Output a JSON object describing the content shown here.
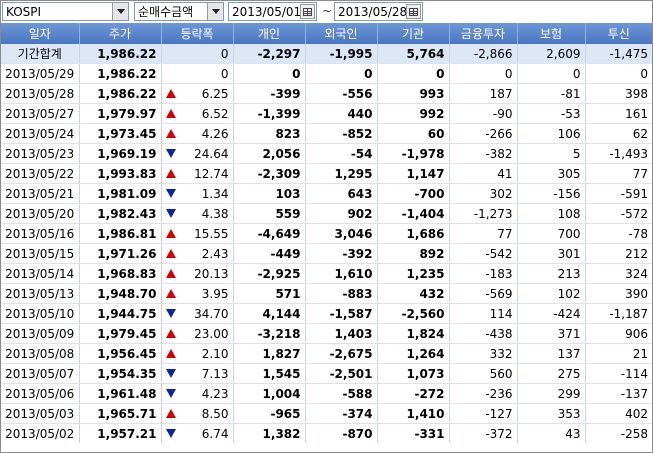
{
  "toolbar": {
    "market": "KOSPI",
    "metric": "순매수금액",
    "start_date": "2013/05/01",
    "separator": "~",
    "end_date": "2013/05/28"
  },
  "columns": [
    "일자",
    "주가",
    "등락폭",
    "개인",
    "외국인",
    "기관",
    "금융투자",
    "보험",
    "투신"
  ],
  "colors": {
    "up": "#d40000",
    "down": "#0a24a6",
    "header": "#4a76c0"
  },
  "rows": [
    {
      "date": "기간합계",
      "price": "1,986.22",
      "dir": "flat",
      "change": "0",
      "individual": "-2,297",
      "foreign": "-1,995",
      "institution": "5,764",
      "fin_invest": "-2,866",
      "insurance": "2,609",
      "trust": "-1,475",
      "total": true
    },
    {
      "date": "2013/05/29",
      "price": "1,986.22",
      "dir": "flat",
      "change": "0",
      "individual": "0",
      "foreign": "0",
      "institution": "0",
      "fin_invest": "0",
      "insurance": "0",
      "trust": "0"
    },
    {
      "date": "2013/05/28",
      "price": "1,986.22",
      "dir": "up",
      "change": "6.25",
      "individual": "-399",
      "foreign": "-556",
      "institution": "993",
      "fin_invest": "187",
      "insurance": "-81",
      "trust": "398"
    },
    {
      "date": "2013/05/27",
      "price": "1,979.97",
      "dir": "up",
      "change": "6.52",
      "individual": "-1,399",
      "foreign": "440",
      "institution": "992",
      "fin_invest": "-90",
      "insurance": "-53",
      "trust": "161"
    },
    {
      "date": "2013/05/24",
      "price": "1,973.45",
      "dir": "up",
      "change": "4.26",
      "individual": "823",
      "foreign": "-852",
      "institution": "60",
      "fin_invest": "-266",
      "insurance": "106",
      "trust": "62"
    },
    {
      "date": "2013/05/23",
      "price": "1,969.19",
      "dir": "down",
      "change": "24.64",
      "individual": "2,056",
      "foreign": "-54",
      "institution": "-1,978",
      "fin_invest": "-382",
      "insurance": "5",
      "trust": "-1,493"
    },
    {
      "date": "2013/05/22",
      "price": "1,993.83",
      "dir": "up",
      "change": "12.74",
      "individual": "-2,309",
      "foreign": "1,295",
      "institution": "1,147",
      "fin_invest": "41",
      "insurance": "305",
      "trust": "77"
    },
    {
      "date": "2013/05/21",
      "price": "1,981.09",
      "dir": "down",
      "change": "1.34",
      "individual": "103",
      "foreign": "643",
      "institution": "-700",
      "fin_invest": "302",
      "insurance": "-156",
      "trust": "-591"
    },
    {
      "date": "2013/05/20",
      "price": "1,982.43",
      "dir": "down",
      "change": "4.38",
      "individual": "559",
      "foreign": "902",
      "institution": "-1,404",
      "fin_invest": "-1,273",
      "insurance": "108",
      "trust": "-572"
    },
    {
      "date": "2013/05/16",
      "price": "1,986.81",
      "dir": "up",
      "change": "15.55",
      "individual": "-4,649",
      "foreign": "3,046",
      "institution": "1,686",
      "fin_invest": "77",
      "insurance": "700",
      "trust": "-78"
    },
    {
      "date": "2013/05/15",
      "price": "1,971.26",
      "dir": "up",
      "change": "2.43",
      "individual": "-449",
      "foreign": "-392",
      "institution": "892",
      "fin_invest": "-542",
      "insurance": "301",
      "trust": "212"
    },
    {
      "date": "2013/05/14",
      "price": "1,968.83",
      "dir": "up",
      "change": "20.13",
      "individual": "-2,925",
      "foreign": "1,610",
      "institution": "1,235",
      "fin_invest": "-183",
      "insurance": "213",
      "trust": "324"
    },
    {
      "date": "2013/05/13",
      "price": "1,948.70",
      "dir": "up",
      "change": "3.95",
      "individual": "571",
      "foreign": "-883",
      "institution": "432",
      "fin_invest": "-569",
      "insurance": "102",
      "trust": "390"
    },
    {
      "date": "2013/05/10",
      "price": "1,944.75",
      "dir": "down",
      "change": "34.70",
      "individual": "4,144",
      "foreign": "-1,587",
      "institution": "-2,560",
      "fin_invest": "114",
      "insurance": "-424",
      "trust": "-1,187"
    },
    {
      "date": "2013/05/09",
      "price": "1,979.45",
      "dir": "up",
      "change": "23.00",
      "individual": "-3,218",
      "foreign": "1,403",
      "institution": "1,824",
      "fin_invest": "-438",
      "insurance": "371",
      "trust": "906"
    },
    {
      "date": "2013/05/08",
      "price": "1,956.45",
      "dir": "up",
      "change": "2.10",
      "individual": "1,827",
      "foreign": "-2,675",
      "institution": "1,264",
      "fin_invest": "332",
      "insurance": "137",
      "trust": "21"
    },
    {
      "date": "2013/05/07",
      "price": "1,954.35",
      "dir": "down",
      "change": "7.13",
      "individual": "1,545",
      "foreign": "-2,501",
      "institution": "1,073",
      "fin_invest": "560",
      "insurance": "275",
      "trust": "-114"
    },
    {
      "date": "2013/05/06",
      "price": "1,961.48",
      "dir": "down",
      "change": "4.23",
      "individual": "1,004",
      "foreign": "-588",
      "institution": "-272",
      "fin_invest": "-236",
      "insurance": "299",
      "trust": "-137"
    },
    {
      "date": "2013/05/03",
      "price": "1,965.71",
      "dir": "up",
      "change": "8.50",
      "individual": "-965",
      "foreign": "-374",
      "institution": "1,410",
      "fin_invest": "-127",
      "insurance": "353",
      "trust": "402"
    },
    {
      "date": "2013/05/02",
      "price": "1,957.21",
      "dir": "down",
      "change": "6.74",
      "individual": "1,382",
      "foreign": "-870",
      "institution": "-331",
      "fin_invest": "-372",
      "insurance": "43",
      "trust": "-258"
    }
  ]
}
